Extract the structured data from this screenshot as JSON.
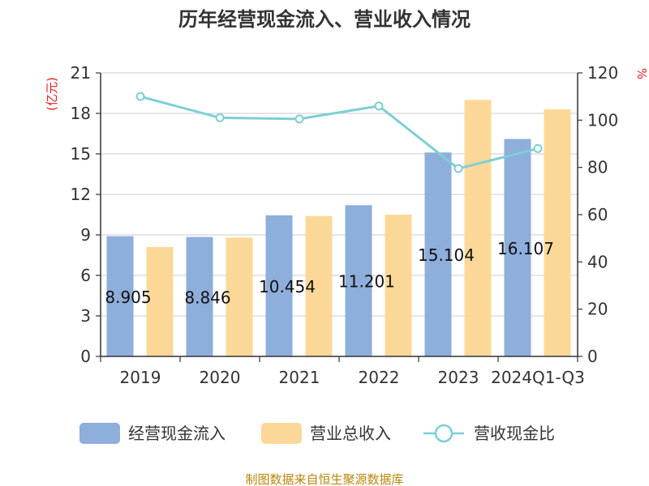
{
  "chart_data": {
    "type": "bar",
    "title": "历年经营现金流入、营业收入情况",
    "categories": [
      "2019",
      "2020",
      "2021",
      "2022",
      "2023",
      "2024Q1-Q3"
    ],
    "series": [
      {
        "name": "经营现金流入",
        "type": "bar",
        "axis": "left",
        "color": "#8eaedc",
        "values": [
          8.905,
          8.846,
          10.454,
          11.201,
          15.104,
          16.107
        ]
      },
      {
        "name": "营业总收入",
        "type": "bar",
        "axis": "left",
        "color": "#fcd898",
        "values": [
          8.1,
          8.8,
          10.4,
          10.5,
          19.0,
          18.3
        ]
      },
      {
        "name": "营收现金比",
        "type": "line",
        "axis": "right",
        "color": "#7ecfd2",
        "values": [
          110,
          101,
          100.5,
          106,
          79.5,
          88
        ]
      }
    ],
    "data_labels": [
      "8.905",
      "8.846",
      "10.454",
      "11.201",
      "15.104",
      "16.107"
    ],
    "ylabel_left": "(亿元)",
    "ylabel_right": "%",
    "ylim_left": [
      0,
      21
    ],
    "yticks_left": [
      0,
      3,
      6,
      9,
      12,
      15,
      18,
      21
    ],
    "ylim_right": [
      0,
      120
    ],
    "yticks_right": [
      0,
      20,
      40,
      60,
      80,
      100,
      120
    ],
    "grid": true,
    "legend_position": "bottom"
  },
  "source": "制图数据来自恒生聚源数据库",
  "colors": {
    "axis": "#333333",
    "grid": "#cccccc",
    "unit": "#e0201b",
    "source": "#b8860b"
  }
}
